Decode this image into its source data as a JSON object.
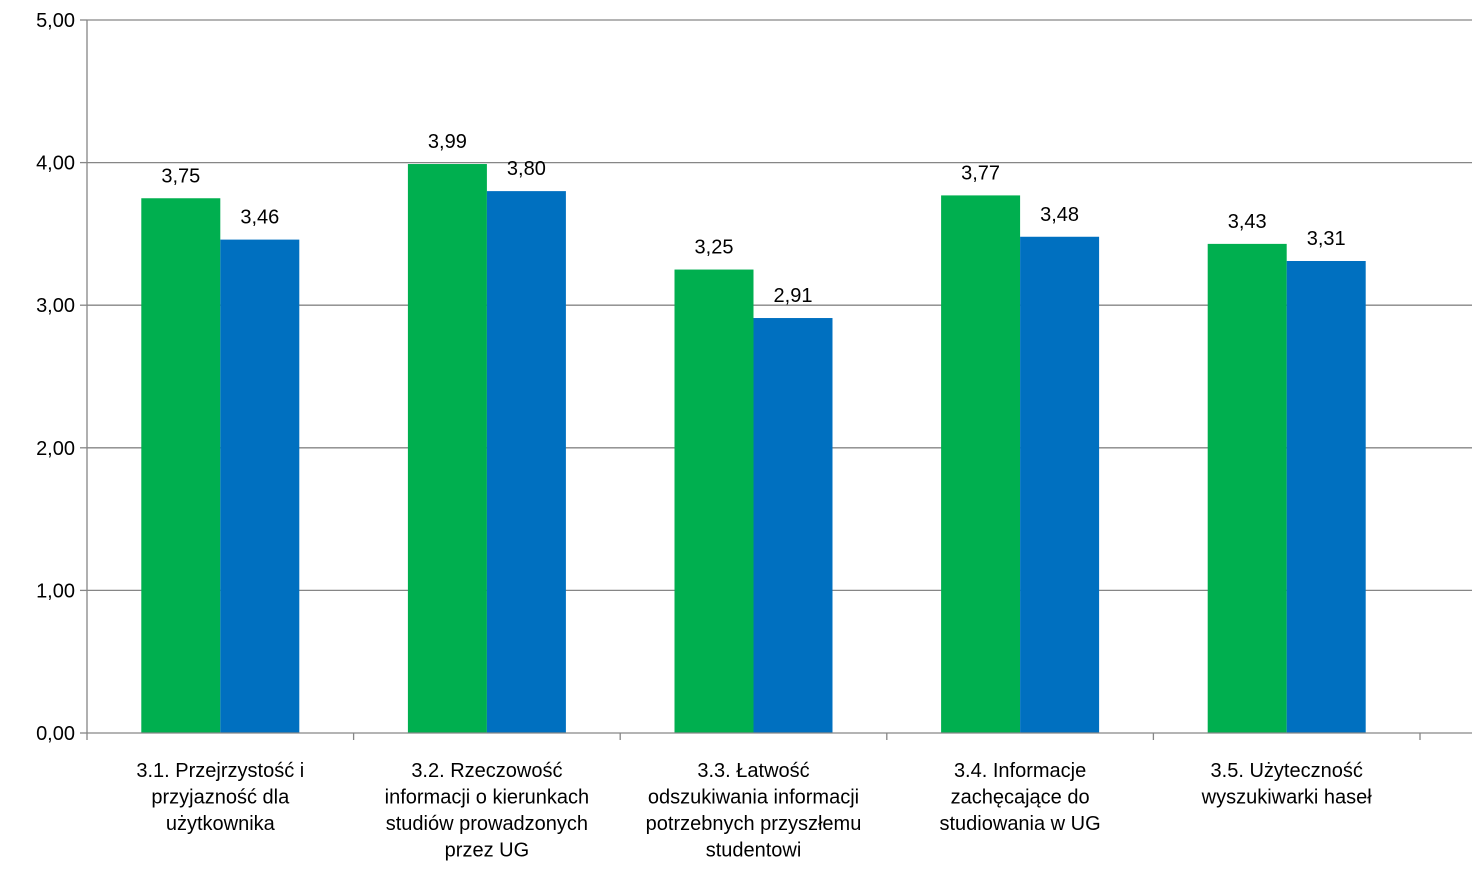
{
  "chart_data": {
    "type": "bar",
    "categories": [
      [
        "3.1. Przejrzystość i",
        "przyjazność dla",
        "użytkownika"
      ],
      [
        "3.2. Rzeczowość",
        "informacji o kierunkach",
        "studiów prowadzonych",
        "przez UG"
      ],
      [
        "3.3. Łatwość",
        "odszukiwania informacji",
        "potrzebnych przyszłemu",
        "studentowi"
      ],
      [
        "3.4. Informacje",
        "zachęcające do",
        "studiowania w UG"
      ],
      [
        "3.5. Użyteczność",
        "wyszukiwarki haseł"
      ]
    ],
    "series": [
      {
        "values": [
          3.75,
          3.99,
          3.25,
          3.77,
          3.43
        ],
        "labels": [
          "3,75",
          "3,99",
          "3,25",
          "3,77",
          "3,43"
        ],
        "color": "#00AF4F"
      },
      {
        "values": [
          3.46,
          3.8,
          2.91,
          3.48,
          3.31
        ],
        "labels": [
          "3,46",
          "3,80",
          "2,91",
          "3,48",
          "3,31"
        ],
        "color": "#0070C0"
      }
    ],
    "yticks": [
      0,
      1,
      2,
      3,
      4,
      5
    ],
    "ytick_labels": [
      "0,00",
      "1,00",
      "2,00",
      "3,00",
      "4,00",
      "5,00"
    ],
    "ylim": [
      0,
      5
    ],
    "grid": true,
    "legend": "none"
  }
}
